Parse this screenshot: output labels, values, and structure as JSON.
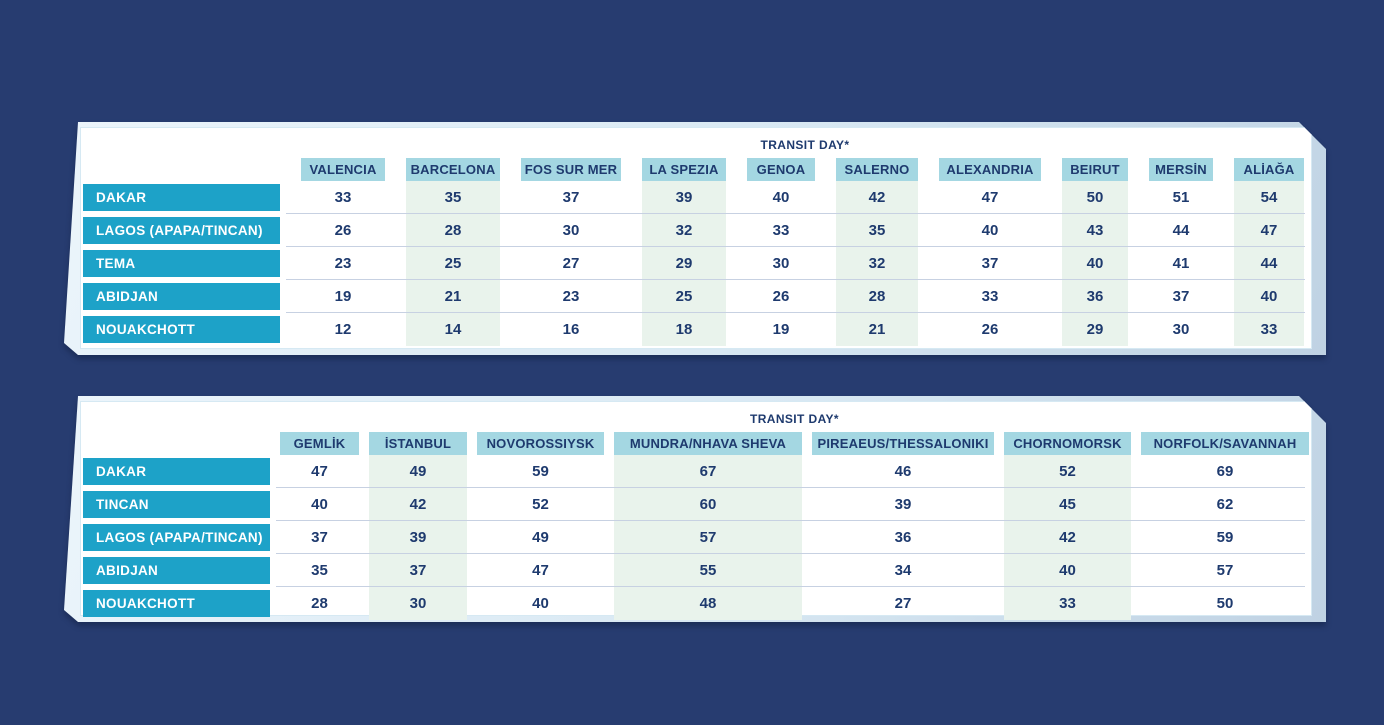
{
  "page": {
    "background_color": "#273c70"
  },
  "colors": {
    "background_navy": "#273c70",
    "row_header_bg": "#1da2c8",
    "row_header_text": "#ffffff",
    "column_header_bg": "#a4d7e2",
    "mint_column_bg": "#e9f3ec",
    "divider_line": "#c7d1e2",
    "text_navy": "#1e3a6e",
    "panel_face": "#ffffff",
    "panel_edge": "#d8e8f3"
  },
  "chart_data": [
    {
      "type": "table",
      "title": "TRANSIT DAY*",
      "columns": [
        "VALENCIA",
        "BARCELONA",
        "FOS SUR MER",
        "LA SPEZIA",
        "GENOA",
        "SALERNO",
        "ALEXANDRIA",
        "BEIRUT",
        "MERSİN",
        "ALİAĞA"
      ],
      "rows": [
        {
          "label": "DAKAR",
          "values": [
            33,
            35,
            37,
            39,
            40,
            42,
            47,
            50,
            51,
            54
          ]
        },
        {
          "label": "LAGOS (APAPA/TINCAN)",
          "values": [
            26,
            28,
            30,
            32,
            33,
            35,
            40,
            43,
            44,
            47
          ]
        },
        {
          "label": "TEMA",
          "values": [
            23,
            25,
            27,
            29,
            30,
            32,
            37,
            40,
            41,
            44
          ]
        },
        {
          "label": "ABIDJAN",
          "values": [
            19,
            21,
            23,
            25,
            26,
            28,
            33,
            36,
            37,
            40
          ]
        },
        {
          "label": "NOUAKCHOTT",
          "values": [
            12,
            14,
            16,
            18,
            19,
            21,
            26,
            29,
            30,
            33
          ]
        }
      ]
    },
    {
      "type": "table",
      "title": "TRANSIT DAY*",
      "columns": [
        "GEMLİK",
        "İSTANBUL",
        "NOVOROSSIYSK",
        "MUNDRA/NHAVA SHEVA",
        "PIREAEUS/THESSALONIKI",
        "CHORNOMORSK",
        "NORFOLK/SAVANNAH"
      ],
      "rows": [
        {
          "label": "DAKAR",
          "values": [
            47,
            49,
            59,
            67,
            46,
            52,
            69
          ]
        },
        {
          "label": "TINCAN",
          "values": [
            40,
            42,
            52,
            60,
            39,
            45,
            62
          ]
        },
        {
          "label": "LAGOS (APAPA/TINCAN)",
          "values": [
            37,
            39,
            49,
            57,
            36,
            42,
            59
          ]
        },
        {
          "label": "ABIDJAN",
          "values": [
            35,
            37,
            47,
            55,
            34,
            40,
            57
          ]
        },
        {
          "label": "NOUAKCHOTT",
          "values": [
            28,
            30,
            40,
            48,
            27,
            33,
            50
          ]
        }
      ]
    }
  ]
}
